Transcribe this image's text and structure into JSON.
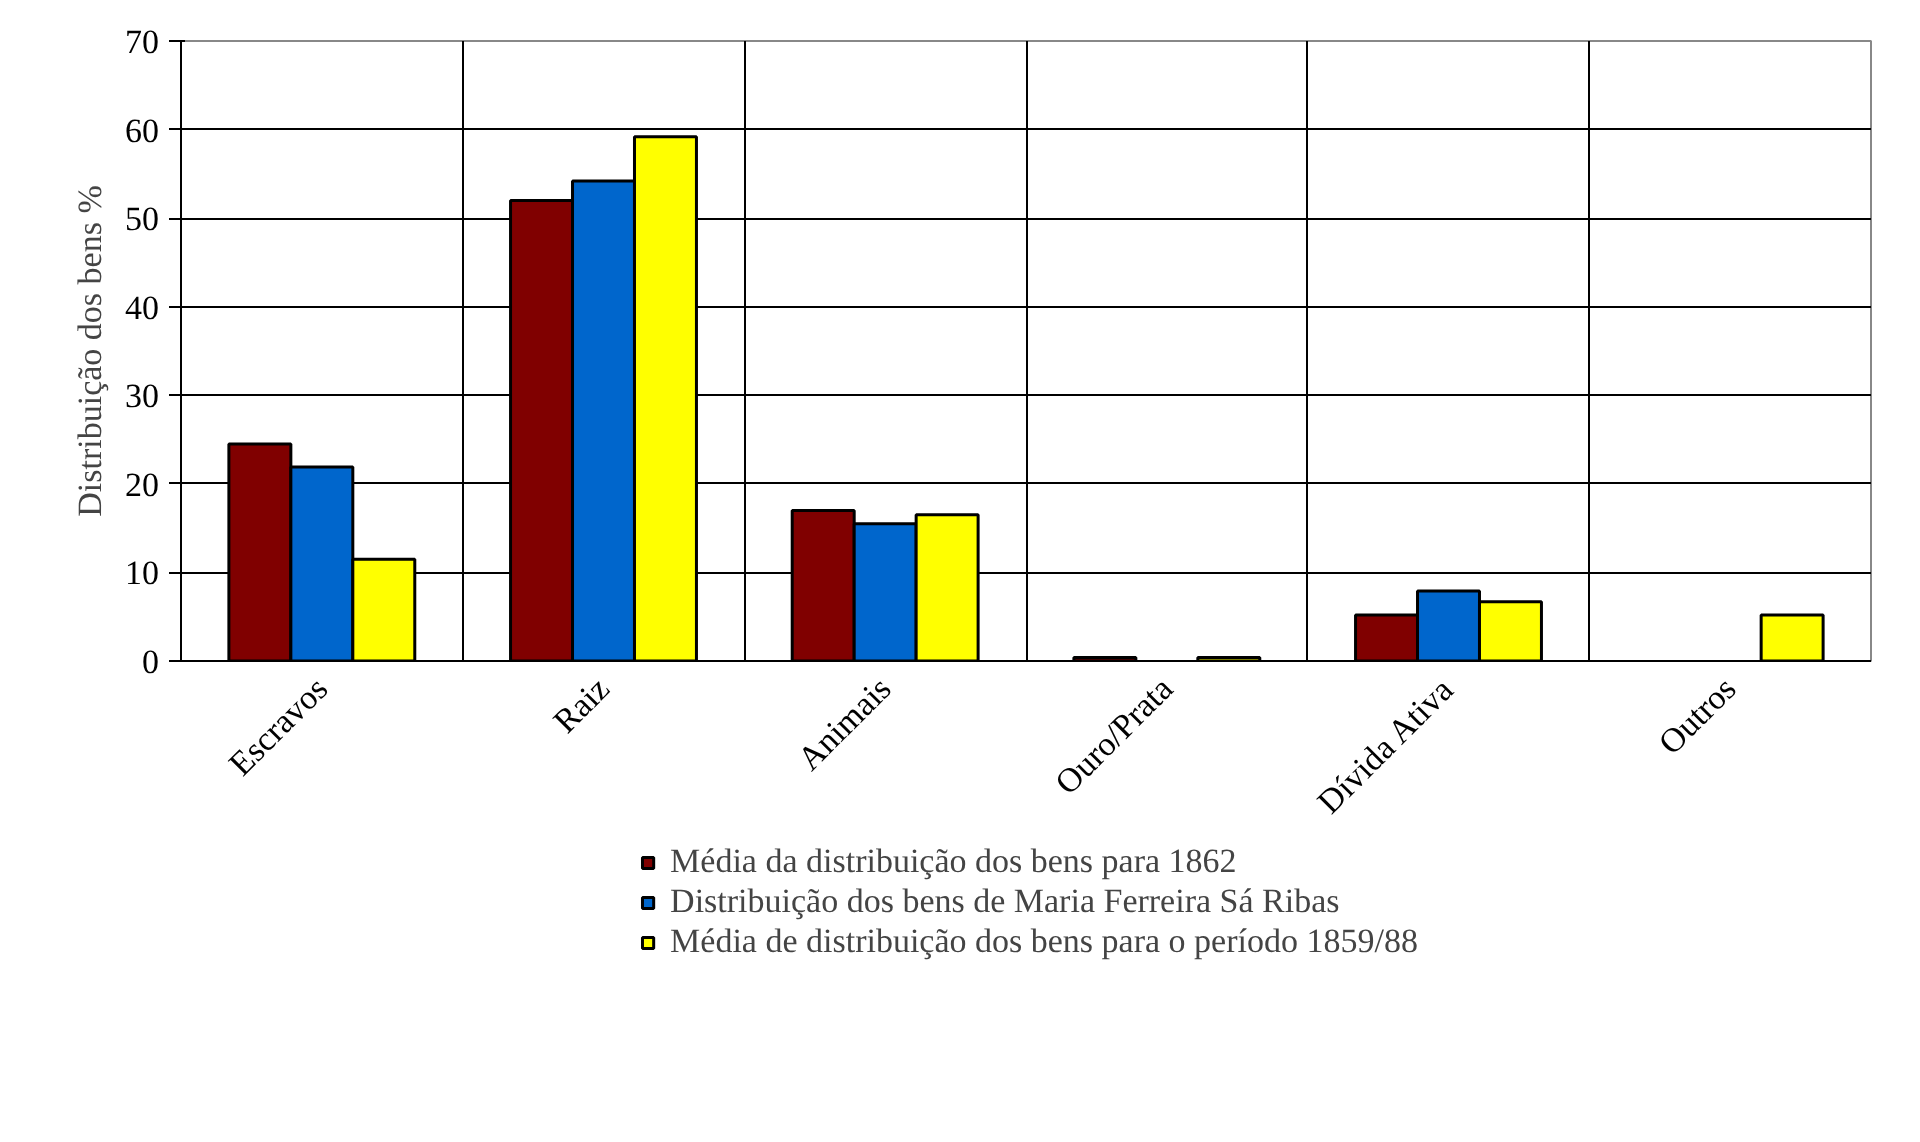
{
  "chart_data": {
    "type": "bar",
    "ylabel": "Distribuição dos bens %",
    "categories": [
      "Escravos",
      "Raiz",
      "Animais",
      "Ouro/Prata",
      "Dívida Ativa",
      "Outros"
    ],
    "series": [
      {
        "name": "Média da distribuição dos bens para 1862",
        "color": "#800000",
        "values": [
          24.5,
          52.0,
          17.0,
          0.4,
          5.2,
          null
        ]
      },
      {
        "name": "Distribuição dos bens de Maria Ferreira Sá Ribas",
        "color": "#0066cc",
        "values": [
          21.9,
          54.2,
          15.5,
          null,
          7.9,
          null
        ]
      },
      {
        "name": "Média de distribuição dos bens para o período 1859/88",
        "color": "#ffff00",
        "values": [
          11.5,
          59.2,
          16.5,
          0.4,
          6.7,
          5.2
        ]
      }
    ],
    "ylim": [
      0,
      70
    ],
    "yticks": [
      0,
      10,
      20,
      30,
      40,
      50,
      60,
      70
    ],
    "grid": true,
    "legend": "bottom"
  }
}
